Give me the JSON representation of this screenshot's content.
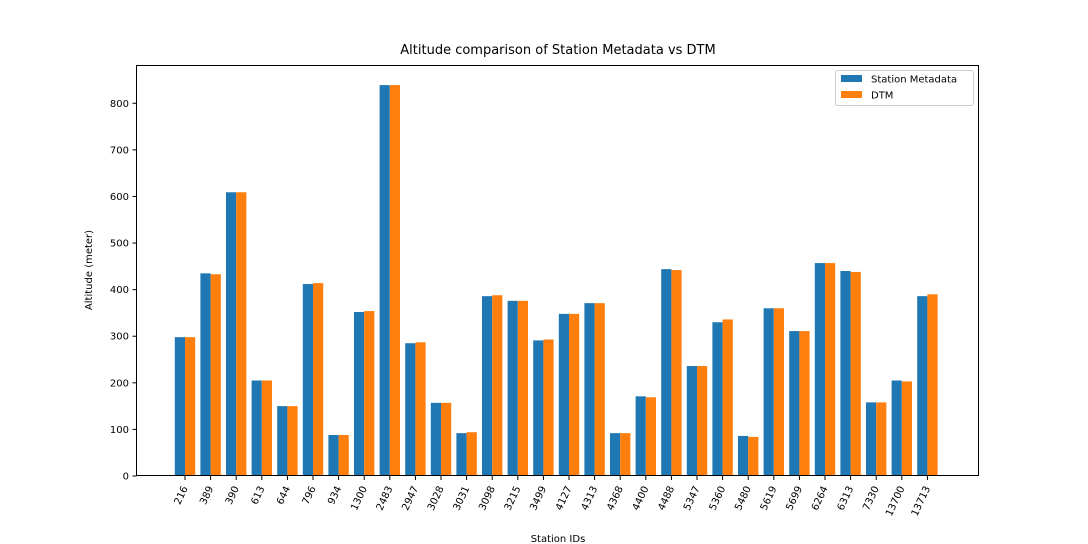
{
  "chart_data": {
    "type": "bar",
    "title": "Altitude comparison of Station Metadata vs DTM",
    "xlabel": "Station IDs",
    "ylabel": "Altitude (meter)",
    "ylim": [
      0,
      880
    ],
    "yticks": [
      0,
      100,
      200,
      300,
      400,
      500,
      600,
      700,
      800
    ],
    "yticklabels": [
      "0",
      "100",
      "200",
      "300",
      "400",
      "500",
      "600",
      "700",
      "800"
    ],
    "grid": false,
    "legend_position": "top-right",
    "categories": [
      "216",
      "389",
      "390",
      "613",
      "644",
      "796",
      "934",
      "1300",
      "2483",
      "2947",
      "3028",
      "3031",
      "3098",
      "3215",
      "3499",
      "4127",
      "4313",
      "4368",
      "4400",
      "4488",
      "5347",
      "5360",
      "5480",
      "5619",
      "5699",
      "6264",
      "6313",
      "7330",
      "13700",
      "13713"
    ],
    "series": [
      {
        "name": "Station Metadata",
        "color": "#1f77b4",
        "values": [
          298,
          435,
          609,
          205,
          150,
          412,
          88,
          352,
          839,
          285,
          157,
          92,
          386,
          376,
          291,
          348,
          371,
          92,
          171,
          444,
          236,
          330,
          86,
          360,
          311,
          457,
          440,
          158,
          205,
          386
        ]
      },
      {
        "name": "DTM",
        "color": "#ff7f0e",
        "values": [
          298,
          433,
          609,
          205,
          150,
          414,
          88,
          354,
          839,
          287,
          157,
          94,
          388,
          376,
          293,
          348,
          371,
          92,
          169,
          442,
          236,
          336,
          84,
          360,
          311,
          457,
          438,
          158,
          203,
          390
        ]
      }
    ]
  }
}
